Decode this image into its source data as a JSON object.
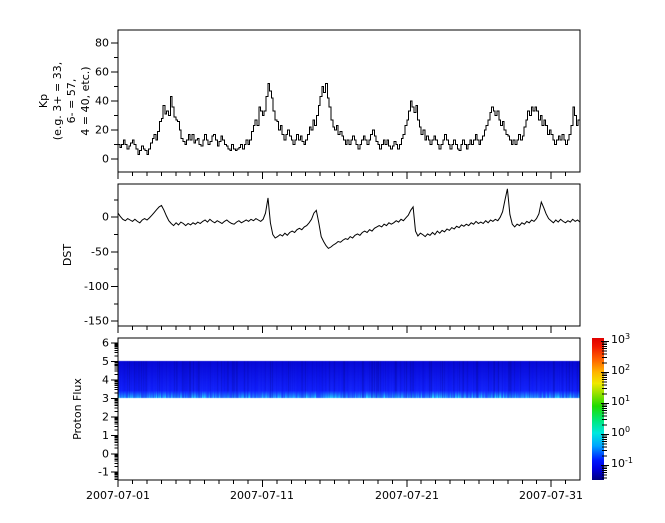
{
  "figure": {
    "background": "#ffffff",
    "x_axis": {
      "tick_labels": [
        "2007-07-01",
        "2007-07-11",
        "2007-07-21",
        "2007-07-31"
      ],
      "tick_days": [
        1,
        11,
        21,
        31
      ],
      "minor_every_days": 1,
      "xlim_days": [
        1,
        33
      ]
    }
  },
  "chart_data": [
    {
      "type": "line",
      "name": "kp-index",
      "draw_style": "steps",
      "line_color": "#000000",
      "ylabel_lines": [
        "Kp",
        "(e.g. 3+ = 33,",
        "6- = 57,",
        "4 = 40, etc.)"
      ],
      "ylim": [
        -9,
        89
      ],
      "yticks": [
        0,
        20,
        40,
        60,
        80
      ],
      "yminorticks": [
        10,
        30,
        50,
        70
      ],
      "samples_per_day": 8,
      "values": [
        10,
        8,
        10,
        13,
        10,
        7,
        9,
        11,
        13,
        10,
        7,
        3,
        6,
        9,
        7,
        6,
        3,
        7,
        11,
        14,
        17,
        13,
        19,
        26,
        28,
        37,
        31,
        33,
        30,
        43,
        36,
        29,
        27,
        26,
        20,
        14,
        12,
        10,
        13,
        17,
        13,
        17,
        11,
        13,
        14,
        10,
        9,
        13,
        17,
        13,
        10,
        12,
        16,
        17,
        13,
        9,
        12,
        16,
        13,
        10,
        9,
        7,
        6,
        10,
        7,
        6,
        7,
        8,
        10,
        7,
        10,
        13,
        10,
        13,
        19,
        23,
        27,
        23,
        36,
        33,
        30,
        33,
        43,
        52,
        47,
        42,
        33,
        27,
        26,
        20,
        23,
        17,
        13,
        17,
        20,
        16,
        13,
        10,
        13,
        17,
        13,
        16,
        12,
        10,
        13,
        17,
        22,
        20,
        27,
        23,
        30,
        37,
        43,
        50,
        46,
        52,
        42,
        36,
        27,
        22,
        20,
        23,
        17,
        19,
        16,
        13,
        10,
        13,
        10,
        13,
        16,
        13,
        10,
        7,
        10,
        13,
        16,
        13,
        10,
        13,
        17,
        20,
        16,
        12,
        10,
        7,
        10,
        13,
        10,
        13,
        9,
        7,
        9,
        12,
        10,
        7,
        10,
        14,
        17,
        23,
        27,
        33,
        40,
        36,
        32,
        37,
        27,
        22,
        17,
        20,
        13,
        16,
        13,
        10,
        13,
        16,
        13,
        10,
        7,
        10,
        13,
        17,
        13,
        10,
        7,
        10,
        13,
        10,
        7,
        6,
        10,
        13,
        10,
        7,
        10,
        13,
        10,
        13,
        17,
        13,
        10,
        13,
        16,
        20,
        23,
        27,
        32,
        36,
        33,
        30,
        33,
        27,
        23,
        26,
        20,
        17,
        16,
        13,
        10,
        13,
        10,
        13,
        17,
        13,
        16,
        22,
        27,
        33,
        30,
        36,
        33,
        36,
        33,
        27,
        30,
        23,
        27,
        23,
        17,
        20,
        17,
        13,
        10,
        13,
        16,
        13,
        17,
        13,
        10,
        13,
        17,
        23,
        36,
        30,
        23,
        27
      ]
    },
    {
      "type": "line",
      "name": "dst-index",
      "draw_style": "linear",
      "line_color": "#000000",
      "ylabel": "DST",
      "ylim": [
        -157,
        48
      ],
      "yticks": [
        0,
        -50,
        -100,
        -150
      ],
      "yminorticks": [
        25,
        -25,
        -75,
        -125
      ],
      "samples_per_day": 6,
      "values": [
        6,
        1,
        -3,
        -5,
        -2,
        -4,
        -6,
        -3,
        -6,
        -8,
        -4,
        -2,
        -4,
        -1,
        3,
        7,
        11,
        15,
        17,
        10,
        2,
        -5,
        -9,
        -12,
        -8,
        -11,
        -7,
        -9,
        -12,
        -9,
        -11,
        -8,
        -10,
        -7,
        -9,
        -6,
        -4,
        -7,
        -3,
        -6,
        -8,
        -5,
        -7,
        -9,
        -6,
        -4,
        -7,
        -9,
        -10,
        -7,
        -5,
        -8,
        -6,
        -4,
        -6,
        -3,
        -5,
        -2,
        -4,
        -6,
        -3,
        6,
        28,
        -8,
        -25,
        -30,
        -28,
        -25,
        -27,
        -23,
        -26,
        -22,
        -20,
        -22,
        -18,
        -16,
        -18,
        -14,
        -12,
        -8,
        -3,
        6,
        10,
        -8,
        -28,
        -35,
        -41,
        -45,
        -43,
        -40,
        -38,
        -35,
        -36,
        -33,
        -31,
        -32,
        -28,
        -30,
        -26,
        -24,
        -26,
        -22,
        -20,
        -22,
        -18,
        -20,
        -16,
        -14,
        -12,
        -14,
        -10,
        -12,
        -8,
        -10,
        -8,
        -5,
        -7,
        -3,
        -5,
        -1,
        3,
        10,
        15,
        -20,
        -27,
        -23,
        -25,
        -28,
        -24,
        -26,
        -22,
        -25,
        -20,
        -23,
        -19,
        -21,
        -17,
        -19,
        -15,
        -17,
        -13,
        -15,
        -11,
        -13,
        -10,
        -12,
        -8,
        -10,
        -6,
        -9,
        -7,
        -9,
        -5,
        -8,
        -4,
        -6,
        -3,
        -5,
        0,
        8,
        25,
        41,
        4,
        -10,
        -14,
        -10,
        -12,
        -8,
        -10,
        -6,
        -8,
        -4,
        -6,
        -2,
        5,
        22,
        14,
        5,
        -2,
        -5,
        -8,
        -4,
        -7,
        -3,
        -6,
        -8,
        -5,
        -7,
        -3,
        -6,
        -4,
        -7
      ]
    },
    {
      "type": "heatmap",
      "name": "proton-flux-spectrogram",
      "ylabel": "Proton Flux",
      "ylim": [
        -1.42,
        6.27
      ],
      "yticks": [
        -1,
        0,
        1,
        2,
        3,
        4,
        5,
        6
      ],
      "yscale_minor": "log",
      "band": {
        "y_from": 3.0,
        "y_to": 5.0,
        "description": "continuous blue band with vertical striations spanning full time range",
        "base_color": "#0a0add",
        "bottom_edge_color": "#18a0ff"
      },
      "colorbar": {
        "scale": "log",
        "ticks": [
          {
            "base": "10",
            "exp": "3"
          },
          {
            "base": "10",
            "exp": "2"
          },
          {
            "base": "10",
            "exp": "1"
          },
          {
            "base": "10",
            "exp": "0"
          },
          {
            "base": "10",
            "exp": "-1"
          }
        ],
        "colors_bottom_to_top": [
          "#00007f",
          "#0000e0",
          "#00a4ff",
          "#00e8df",
          "#1edc00",
          "#f0e800",
          "#ffb400",
          "#ff6000",
          "#e00000"
        ]
      }
    }
  ]
}
